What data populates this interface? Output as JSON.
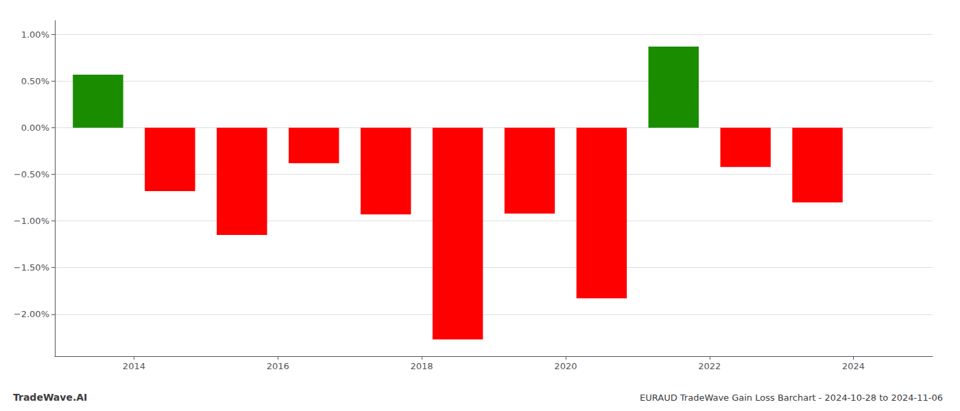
{
  "chart_data": {
    "type": "bar",
    "title": "EURAUD TradeWave Gain Loss Barchart - 2024-10-28 to 2024-11-06",
    "annotations": [
      "TradeWave.AI"
    ],
    "x": [
      2013.5,
      2014.5,
      2015.5,
      2016.5,
      2017.5,
      2018.5,
      2019.5,
      2020.5,
      2021.5,
      2022.5,
      2023.5
    ],
    "values": [
      0.57,
      -0.68,
      -1.15,
      -0.38,
      -0.93,
      -2.27,
      -0.92,
      -1.83,
      0.87,
      -0.42,
      -0.8
    ],
    "colors": [
      "#1a8c00",
      "#ff0000",
      "#ff0000",
      "#ff0000",
      "#ff0000",
      "#ff0000",
      "#ff0000",
      "#ff0000",
      "#1a8c00",
      "#ff0000",
      "#ff0000"
    ],
    "xlim": [
      2012.9,
      2025.1
    ],
    "xticks": [
      2014,
      2016,
      2018,
      2020,
      2022,
      2024
    ],
    "ylim": [
      -2.45,
      1.15
    ],
    "yticks": [
      {
        "value": 1.0,
        "label": "1.00%"
      },
      {
        "value": 0.5,
        "label": "0.50%"
      },
      {
        "value": 0.0,
        "label": "0.00%"
      },
      {
        "value": -0.5,
        "label": "−0.50%"
      },
      {
        "value": -1.0,
        "label": "−1.00%"
      },
      {
        "value": -1.5,
        "label": "−1.50%"
      },
      {
        "value": -2.0,
        "label": "−2.00%"
      }
    ],
    "grid": true
  }
}
